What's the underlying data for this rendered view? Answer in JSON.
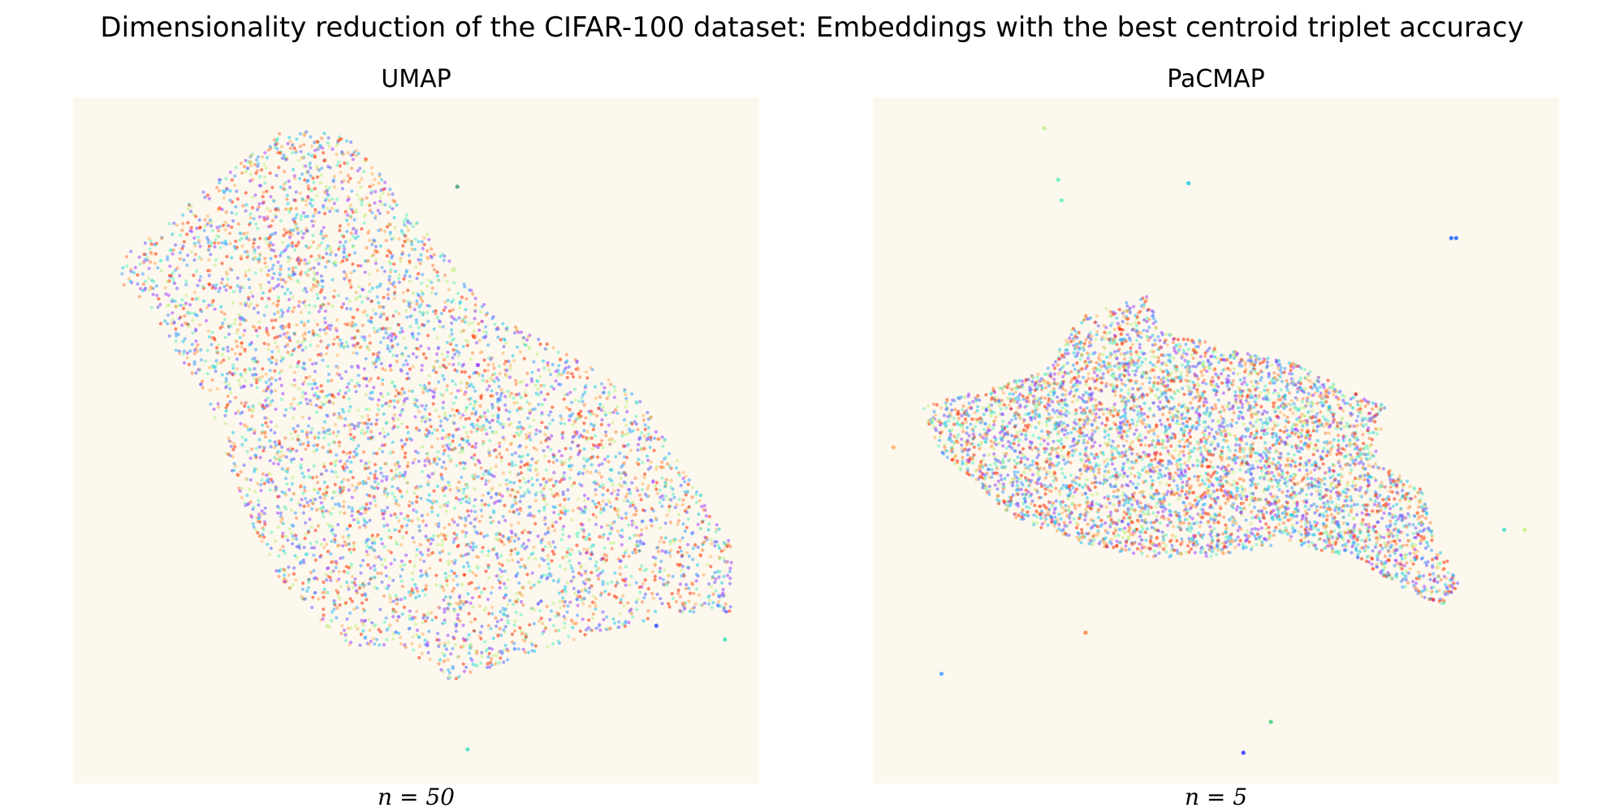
{
  "figure": {
    "title": "Dimensionality reduction of the CIFAR-100 dataset: Embeddings with the best centroid triplet accuracy"
  },
  "chart_data": [
    {
      "type": "scatter",
      "title": "UMAP",
      "caption": "n = 50",
      "xlim": [
        0,
        1
      ],
      "ylim": [
        0,
        1
      ],
      "grid": false,
      "axes_visible": false,
      "background": "#fdf8ee",
      "colormap": [
        "#ff2a00",
        "#ff8040",
        "#ffb060",
        "#c0f080",
        "#60f0c0",
        "#20c8e8",
        "#40a0ff",
        "#6060ff",
        "#a040ff"
      ],
      "cloud_polygon": [
        [
          0.05,
          0.75
        ],
        [
          0.3,
          0.95
        ],
        [
          0.4,
          0.95
        ],
        [
          0.5,
          0.82
        ],
        [
          0.62,
          0.68
        ],
        [
          0.82,
          0.57
        ],
        [
          0.96,
          0.35
        ],
        [
          0.96,
          0.25
        ],
        [
          0.88,
          0.25
        ],
        [
          0.7,
          0.2
        ],
        [
          0.55,
          0.15
        ],
        [
          0.48,
          0.2
        ],
        [
          0.4,
          0.2
        ],
        [
          0.3,
          0.3
        ],
        [
          0.25,
          0.4
        ],
        [
          0.2,
          0.55
        ],
        [
          0.12,
          0.68
        ]
      ],
      "point_count": 5200,
      "outliers": [
        [
          0.575,
          0.05,
          "#40e0c0"
        ],
        [
          0.59,
          0.61,
          "#a030ff"
        ],
        [
          0.62,
          0.56,
          "#6080ff"
        ],
        [
          0.56,
          0.87,
          "#40a080"
        ],
        [
          0.95,
          0.21,
          "#40e0c0"
        ],
        [
          0.85,
          0.23,
          "#3050ff"
        ]
      ]
    },
    {
      "type": "scatter",
      "title": "PaCMAP",
      "caption": "n = 5",
      "xlim": [
        0,
        1
      ],
      "ylim": [
        0,
        1
      ],
      "grid": false,
      "axes_visible": false,
      "background": "#fdf8ee",
      "colormap": [
        "#ff2a00",
        "#ff8040",
        "#ffb060",
        "#c0f080",
        "#60f0c0",
        "#20c8e8",
        "#40a0ff",
        "#6060ff",
        "#a040ff"
      ],
      "cloud_polygon": [
        [
          0.07,
          0.55
        ],
        [
          0.15,
          0.57
        ],
        [
          0.25,
          0.6
        ],
        [
          0.3,
          0.68
        ],
        [
          0.4,
          0.71
        ],
        [
          0.42,
          0.66
        ],
        [
          0.62,
          0.61
        ],
        [
          0.7,
          0.57
        ],
        [
          0.75,
          0.55
        ],
        [
          0.73,
          0.47
        ],
        [
          0.8,
          0.43
        ],
        [
          0.82,
          0.35
        ],
        [
          0.86,
          0.29
        ],
        [
          0.83,
          0.26
        ],
        [
          0.78,
          0.28
        ],
        [
          0.7,
          0.33
        ],
        [
          0.6,
          0.35
        ],
        [
          0.5,
          0.33
        ],
        [
          0.4,
          0.33
        ],
        [
          0.3,
          0.35
        ],
        [
          0.2,
          0.39
        ],
        [
          0.15,
          0.44
        ],
        [
          0.1,
          0.48
        ]
      ],
      "point_count": 5200,
      "outliers": [
        [
          0.25,
          0.955,
          "#c0f080"
        ],
        [
          0.27,
          0.88,
          "#60f0c0"
        ],
        [
          0.275,
          0.85,
          "#60f0c0"
        ],
        [
          0.46,
          0.875,
          "#20c8e8"
        ],
        [
          0.85,
          0.795,
          "#2060ff"
        ],
        [
          0.843,
          0.795,
          "#2060ff"
        ],
        [
          0.1,
          0.16,
          "#40a0ff"
        ],
        [
          0.31,
          0.22,
          "#ff8040"
        ],
        [
          0.58,
          0.09,
          "#40d080"
        ],
        [
          0.54,
          0.045,
          "#3030ff"
        ],
        [
          0.92,
          0.37,
          "#40e0c0"
        ],
        [
          0.95,
          0.37,
          "#c0f080"
        ],
        [
          0.03,
          0.49,
          "#ffb060"
        ]
      ]
    }
  ]
}
